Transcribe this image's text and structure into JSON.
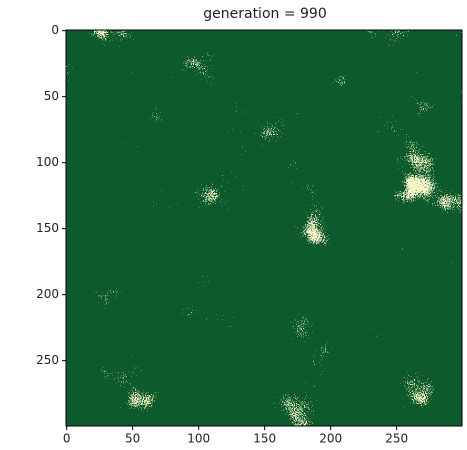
{
  "chart_data": {
    "type": "image",
    "title": "generation = 990",
    "xlim": [
      -0.5,
      299.5
    ],
    "ylim": [
      299.5,
      -0.5
    ],
    "xticks": [
      0,
      50,
      100,
      150,
      200,
      250
    ],
    "yticks": [
      0,
      50,
      100,
      150,
      200,
      250
    ],
    "colormap": [
      "#0d5a2c",
      "#f4f4c6"
    ]
  }
}
